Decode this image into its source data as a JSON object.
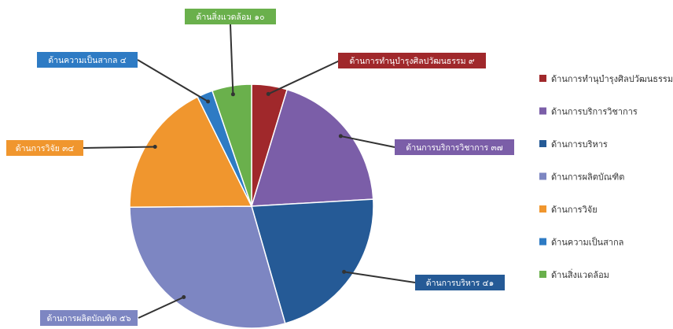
{
  "chart_data": {
    "type": "pie",
    "title": "",
    "slices": [
      {
        "name": "ด้านการทำนุบำรุงศิลปวัฒนธรรม",
        "label": "ด้านการทำนุบำรุงศิลปวัฒนธรรม ๙",
        "value": 9,
        "color": "#a0282b"
      },
      {
        "name": "ด้านการบริการวิชาการ",
        "label": "ด้านการบริการวิชาการ ๓๗",
        "value": 37,
        "color": "#7b5ea8"
      },
      {
        "name": "ด้านการบริหาร",
        "label": "ด้านการบริหาร ๔๑",
        "value": 41,
        "color": "#255a96"
      },
      {
        "name": "ด้านการผลิตบัณฑิต",
        "label": "ด้านการผลิตบัณฑิต ๕๖",
        "value": 56,
        "color": "#7d86c2"
      },
      {
        "name": "ด้านการวิจัย",
        "label": "ด้านการวิจัย ๓๔",
        "value": 34,
        "color": "#f0962e"
      },
      {
        "name": "ด้านความเป็นสากล",
        "label": "ด้านความเป็นสากล ๔",
        "value": 4,
        "color": "#2e7bc4"
      },
      {
        "name": "ด้านสิ่งแวดล้อม",
        "label": "ด้านสิ่งแวดล้อม ๑๐",
        "value": 10,
        "color": "#6ab04c"
      }
    ],
    "legend_position": "right"
  }
}
